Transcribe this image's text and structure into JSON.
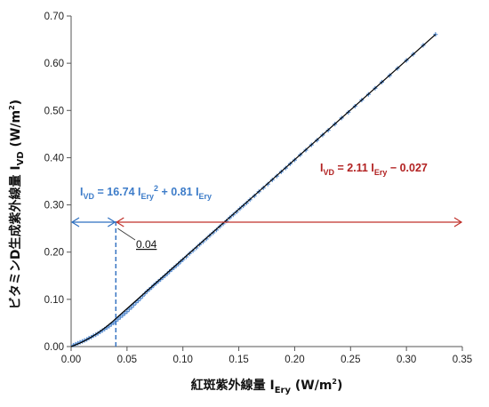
{
  "chart_data": {
    "type": "scatter",
    "xlabel": {
      "main": "紅斑紫外線量 I",
      "sub": "Ery",
      "unit": " (W/m",
      "sup": "2",
      "close": ")"
    },
    "ylabel": {
      "main": "ビタミンD生成紫外線量 I",
      "sub": "VD",
      "unit": " (W/m",
      "sup": "2",
      "close": ")"
    },
    "xlim": [
      0,
      0.35
    ],
    "ylim": [
      0,
      0.7
    ],
    "x_ticks": [
      0.0,
      0.05,
      0.1,
      0.15,
      0.2,
      0.25,
      0.3,
      0.35
    ],
    "x_tick_labels": [
      "0.00",
      "0.05",
      "0.10",
      "0.15",
      "0.20",
      "0.25",
      "0.30",
      "0.35"
    ],
    "y_ticks": [
      0.0,
      0.1,
      0.2,
      0.3,
      0.4,
      0.5,
      0.6,
      0.7
    ],
    "y_tick_labels": [
      "0.00",
      "0.10",
      "0.20",
      "0.30",
      "0.40",
      "0.50",
      "0.60",
      "0.70"
    ],
    "grid": false,
    "marker_color": "#5b8fd1",
    "fit_color": "#000000",
    "threshold_x": 0.04,
    "threshold_label": "0.04",
    "threshold_color": "#2e6fc0",
    "left_equation": {
      "color": "#3d7cc9",
      "parts": [
        {
          "t": "I",
          "m": "n"
        },
        {
          "t": "VD",
          "m": "sub"
        },
        {
          "t": " = 16.74 I",
          "m": "n"
        },
        {
          "t": "Ery",
          "m": "sub"
        },
        {
          "t": "2",
          "m": "sup"
        },
        {
          "t": " + 0.81 I",
          "m": "n"
        },
        {
          "t": "Ery",
          "m": "sub"
        }
      ]
    },
    "right_equation": {
      "color": "#b22222",
      "parts": [
        {
          "t": "I",
          "m": "n"
        },
        {
          "t": "VD",
          "m": "sub"
        },
        {
          "t": " = 2.11 I",
          "m": "n"
        },
        {
          "t": "Ery",
          "m": "sub"
        },
        {
          "t": " − 0.027",
          "m": "n"
        }
      ]
    },
    "left_range": [
      0,
      0.04
    ],
    "right_range": [
      0.04,
      0.35
    ],
    "left_range_color": "#2e6fc0",
    "right_range_color": "#c0302a",
    "series_points": [
      [
        0.002,
        0.003
      ],
      [
        0.004,
        0.005
      ],
      [
        0.006,
        0.007
      ],
      [
        0.008,
        0.009
      ],
      [
        0.01,
        0.011
      ],
      [
        0.012,
        0.013
      ],
      [
        0.014,
        0.015
      ],
      [
        0.016,
        0.018
      ],
      [
        0.018,
        0.02
      ],
      [
        0.02,
        0.023
      ],
      [
        0.022,
        0.025
      ],
      [
        0.024,
        0.028
      ],
      [
        0.026,
        0.031
      ],
      [
        0.028,
        0.034
      ],
      [
        0.03,
        0.037
      ],
      [
        0.032,
        0.04
      ],
      [
        0.034,
        0.043
      ],
      [
        0.036,
        0.047
      ],
      [
        0.038,
        0.05
      ],
      [
        0.04,
        0.054
      ],
      [
        0.042,
        0.058
      ],
      [
        0.044,
        0.062
      ],
      [
        0.046,
        0.066
      ],
      [
        0.048,
        0.07
      ],
      [
        0.05,
        0.074
      ],
      [
        0.052,
        0.079
      ],
      [
        0.054,
        0.083
      ],
      [
        0.056,
        0.088
      ],
      [
        0.058,
        0.093
      ],
      [
        0.06,
        0.097
      ],
      [
        0.062,
        0.102
      ],
      [
        0.064,
        0.107
      ],
      [
        0.066,
        0.112
      ],
      [
        0.068,
        0.117
      ],
      [
        0.07,
        0.121
      ],
      [
        0.072,
        0.125
      ],
      [
        0.074,
        0.13
      ],
      [
        0.076,
        0.134
      ],
      [
        0.078,
        0.138
      ],
      [
        0.08,
        0.142
      ],
      [
        0.082,
        0.146
      ],
      [
        0.084,
        0.15
      ],
      [
        0.086,
        0.154
      ],
      [
        0.088,
        0.159
      ],
      [
        0.09,
        0.163
      ],
      [
        0.092,
        0.167
      ],
      [
        0.094,
        0.171
      ],
      [
        0.096,
        0.175
      ],
      [
        0.098,
        0.18
      ],
      [
        0.1,
        0.184
      ],
      [
        0.103,
        0.19
      ],
      [
        0.106,
        0.197
      ],
      [
        0.109,
        0.203
      ],
      [
        0.112,
        0.209
      ],
      [
        0.115,
        0.216
      ],
      [
        0.118,
        0.222
      ],
      [
        0.121,
        0.228
      ],
      [
        0.124,
        0.235
      ],
      [
        0.127,
        0.241
      ],
      [
        0.13,
        0.247
      ],
      [
        0.133,
        0.254
      ],
      [
        0.136,
        0.26
      ],
      [
        0.139,
        0.266
      ],
      [
        0.142,
        0.273
      ],
      [
        0.145,
        0.279
      ],
      [
        0.148,
        0.285
      ],
      [
        0.151,
        0.292
      ],
      [
        0.154,
        0.298
      ],
      [
        0.157,
        0.304
      ],
      [
        0.16,
        0.311
      ],
      [
        0.164,
        0.319
      ],
      [
        0.168,
        0.328
      ],
      [
        0.172,
        0.336
      ],
      [
        0.176,
        0.344
      ],
      [
        0.18,
        0.353
      ],
      [
        0.184,
        0.361
      ],
      [
        0.188,
        0.37
      ],
      [
        0.192,
        0.378
      ],
      [
        0.196,
        0.387
      ],
      [
        0.2,
        0.395
      ],
      [
        0.205,
        0.406
      ],
      [
        0.21,
        0.416
      ],
      [
        0.215,
        0.427
      ],
      [
        0.22,
        0.437
      ],
      [
        0.225,
        0.448
      ],
      [
        0.23,
        0.458
      ],
      [
        0.236,
        0.471
      ],
      [
        0.242,
        0.484
      ],
      [
        0.248,
        0.496
      ],
      [
        0.254,
        0.509
      ],
      [
        0.26,
        0.522
      ],
      [
        0.266,
        0.534
      ],
      [
        0.272,
        0.547
      ],
      [
        0.278,
        0.56
      ],
      [
        0.285,
        0.574
      ],
      [
        0.292,
        0.589
      ],
      [
        0.3,
        0.606
      ],
      [
        0.306,
        0.619
      ],
      [
        0.315,
        0.638
      ],
      [
        0.326,
        0.661
      ]
    ]
  }
}
